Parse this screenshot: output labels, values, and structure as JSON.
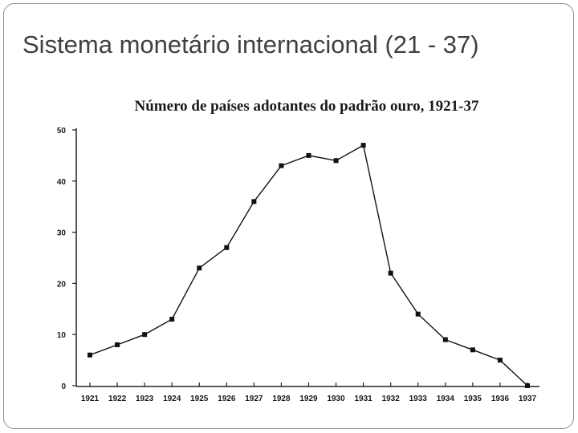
{
  "slide": {
    "title": "Sistema monetário internacional (21 - 37)"
  },
  "chart_data": {
    "type": "line",
    "title": "Número de países adotantes do padrão ouro, 1921-37",
    "xlabel": "",
    "ylabel": "",
    "x": [
      "1921",
      "1922",
      "1923",
      "1924",
      "1925",
      "1926",
      "1927",
      "1928",
      "1929",
      "1930",
      "1931",
      "1932",
      "1933",
      "1934",
      "1935",
      "1936",
      "1937"
    ],
    "series": [
      {
        "values": [
          6,
          8,
          10,
          13,
          23,
          27,
          36,
          43,
          45,
          44,
          47,
          22,
          14,
          9,
          7,
          5,
          0
        ]
      }
    ],
    "ylim": [
      0,
      50
    ],
    "yticks": [
      "0",
      "10",
      "20",
      "30",
      "40",
      "50"
    ],
    "grid": false,
    "legend": "none",
    "line_color": "#111111"
  }
}
